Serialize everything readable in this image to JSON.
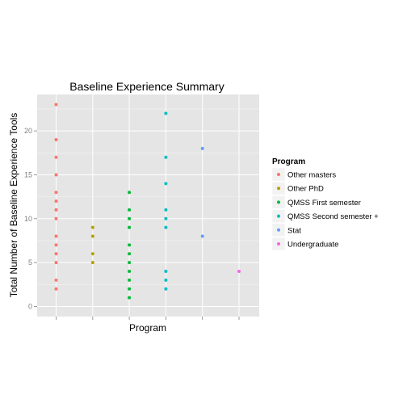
{
  "chart_data": {
    "type": "scatter",
    "title": "Baseline Experience Summary",
    "xlabel": "Program",
    "ylabel": "Total Number of Baseline Experience Tools",
    "ylim": [
      0,
      24
    ],
    "yticks": [
      0,
      5,
      10,
      15,
      20
    ],
    "grid": true,
    "legend": {
      "title": "Program",
      "placement": "right"
    },
    "series": [
      {
        "name": "Other masters",
        "color": "#F8766D",
        "values": [
          2,
          3,
          5,
          6,
          7,
          8,
          10,
          11,
          12,
          13,
          15,
          17,
          19,
          23
        ]
      },
      {
        "name": "Other PhD",
        "color": "#B79F00",
        "values": [
          5,
          6,
          8,
          9
        ]
      },
      {
        "name": "QMSS First semester",
        "color": "#00BA38",
        "values": [
          1,
          2,
          3,
          4,
          5,
          6,
          7,
          9,
          10,
          11,
          13
        ]
      },
      {
        "name": "QMSS Second semester +",
        "color": "#00BFC4",
        "values": [
          2,
          3,
          4,
          9,
          10,
          11,
          14,
          17,
          22
        ]
      },
      {
        "name": "Stat",
        "color": "#619CFF",
        "values": [
          8,
          18
        ]
      },
      {
        "name": "Undergraduate",
        "color": "#F564E3",
        "values": [
          4
        ]
      }
    ]
  }
}
